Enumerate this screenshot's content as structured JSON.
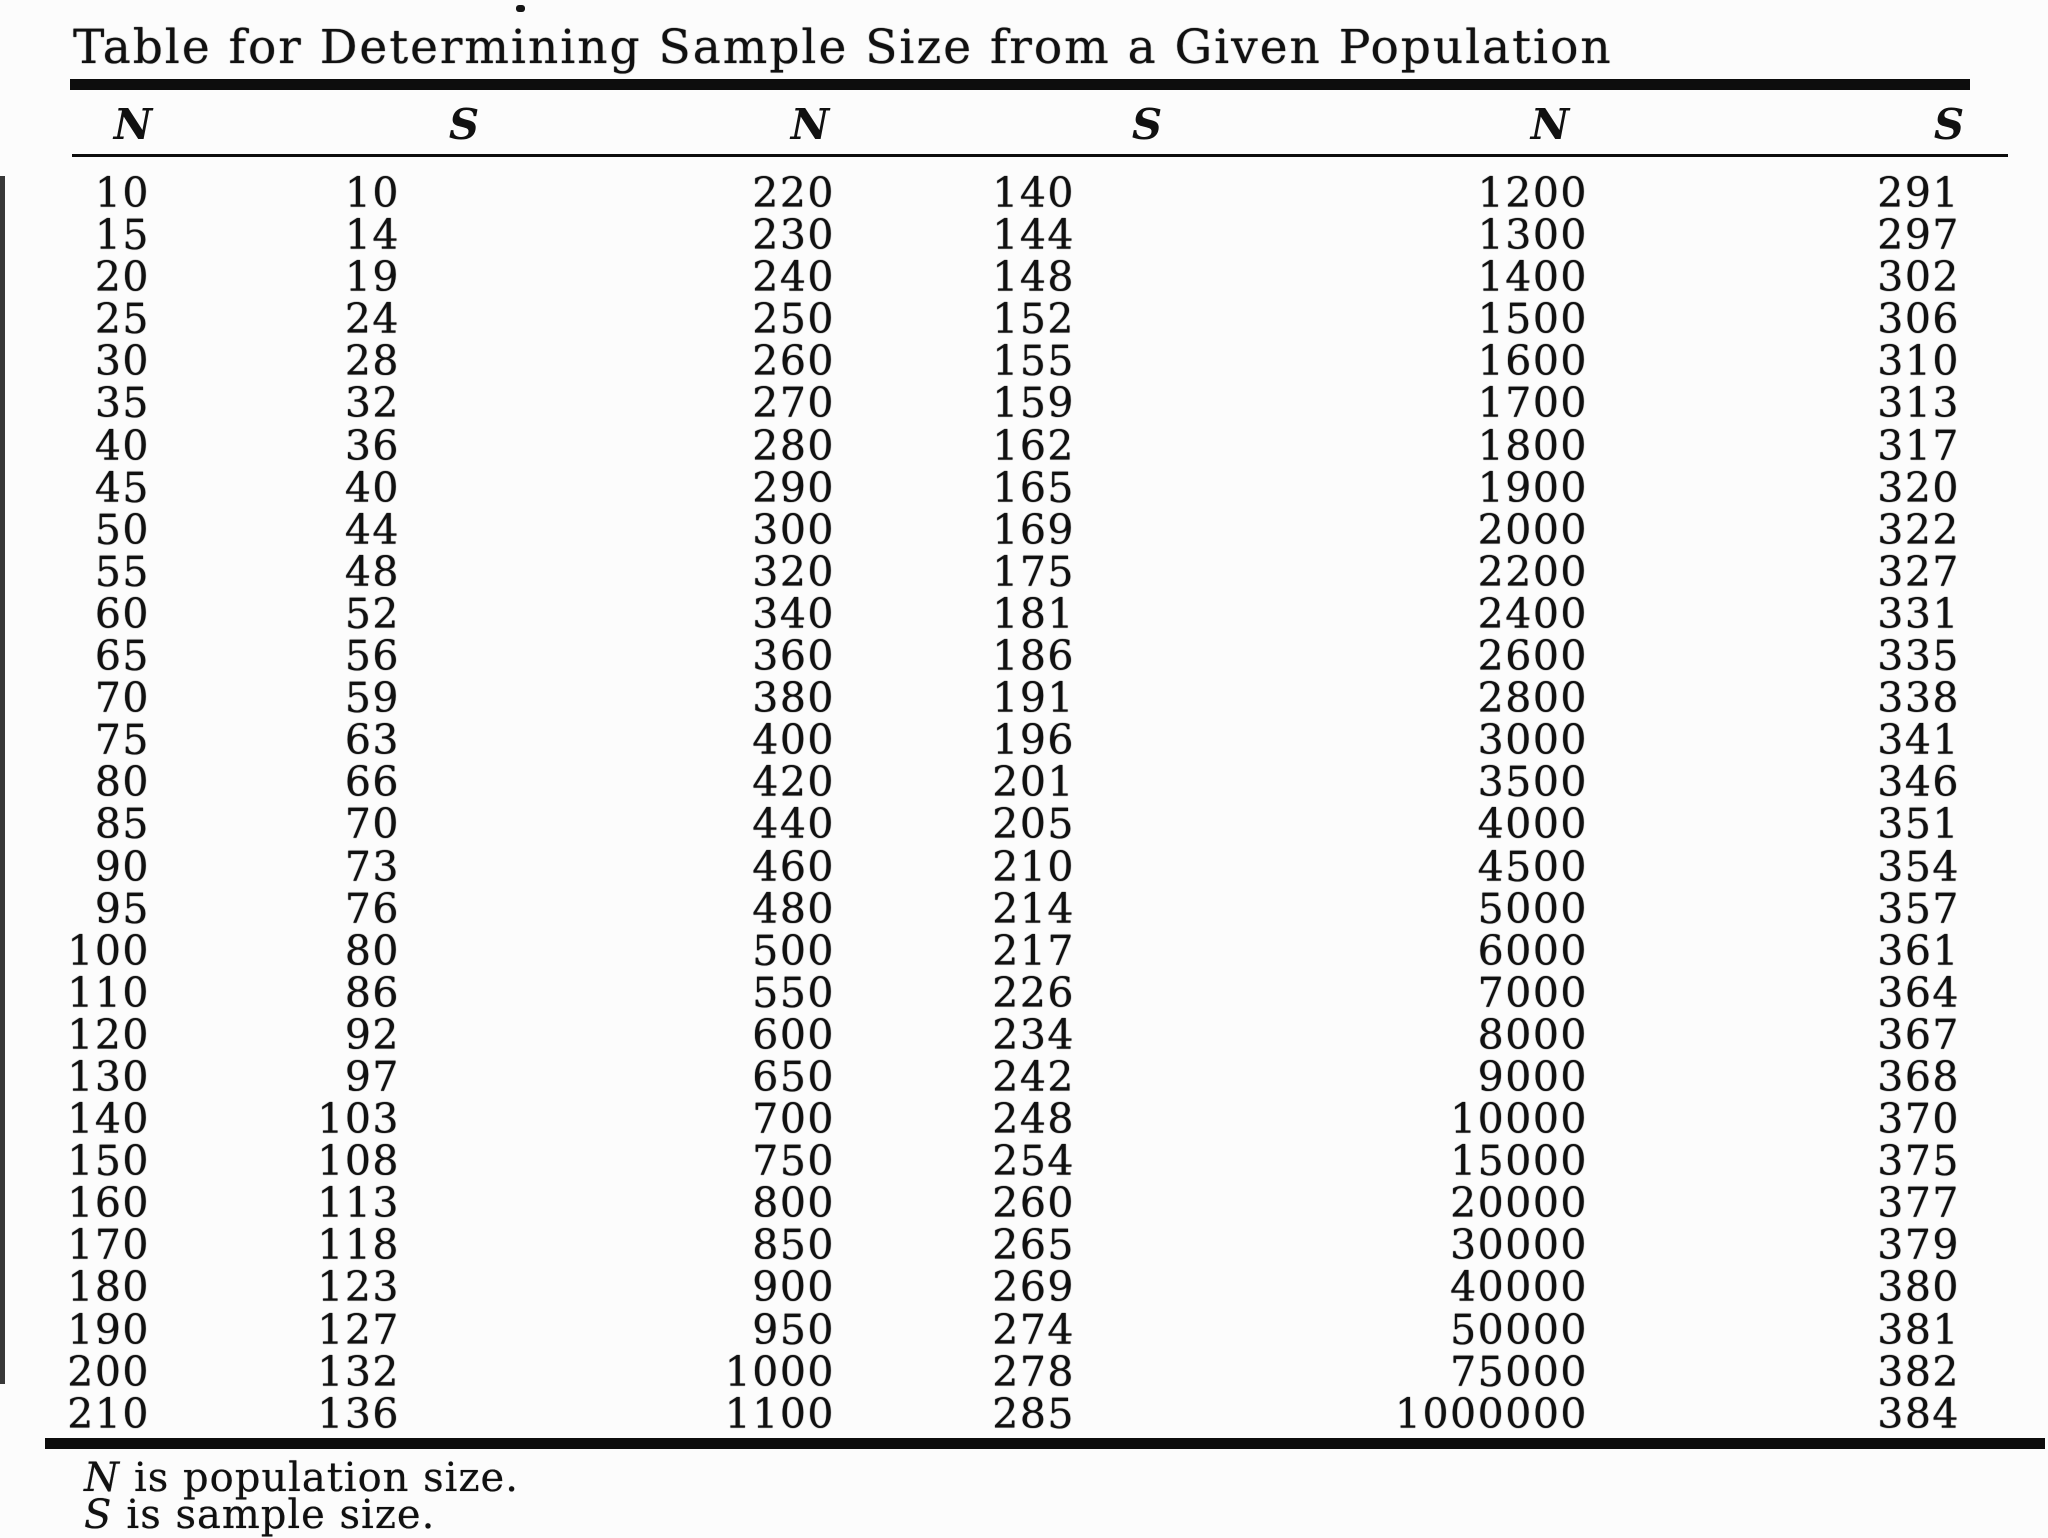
{
  "title": "Table for Determining Sample Size from a Given Population",
  "table": {
    "column_headers": [
      "N",
      "S",
      "N",
      "S",
      "N",
      "S"
    ],
    "columns": [
      {
        "header": "N",
        "values": [
          10,
          15,
          20,
          25,
          30,
          35,
          40,
          45,
          50,
          55,
          60,
          65,
          70,
          75,
          80,
          85,
          90,
          95,
          100,
          110,
          120,
          130,
          140,
          150,
          160,
          170,
          180,
          190,
          200,
          210
        ]
      },
      {
        "header": "S",
        "values": [
          10,
          14,
          19,
          24,
          28,
          32,
          36,
          40,
          44,
          48,
          52,
          56,
          59,
          63,
          66,
          70,
          73,
          76,
          80,
          86,
          92,
          97,
          103,
          108,
          113,
          118,
          123,
          127,
          132,
          136
        ]
      },
      {
        "header": "N",
        "values": [
          220,
          230,
          240,
          250,
          260,
          270,
          280,
          290,
          300,
          320,
          340,
          360,
          380,
          400,
          420,
          440,
          460,
          480,
          500,
          550,
          600,
          650,
          700,
          750,
          800,
          850,
          900,
          950,
          1000,
          1100
        ]
      },
      {
        "header": "S",
        "values": [
          140,
          144,
          148,
          152,
          155,
          159,
          162,
          165,
          169,
          175,
          181,
          186,
          191,
          196,
          201,
          205,
          210,
          214,
          217,
          226,
          234,
          242,
          248,
          254,
          260,
          265,
          269,
          274,
          278,
          285
        ]
      },
      {
        "header": "N",
        "values": [
          1200,
          1300,
          1400,
          1500,
          1600,
          1700,
          1800,
          1900,
          2000,
          2200,
          2400,
          2600,
          2800,
          3000,
          3500,
          4000,
          4500,
          5000,
          6000,
          7000,
          8000,
          9000,
          10000,
          15000,
          20000,
          30000,
          40000,
          50000,
          75000,
          1000000
        ]
      },
      {
        "header": "S",
        "values": [
          291,
          297,
          302,
          306,
          310,
          313,
          317,
          320,
          322,
          327,
          331,
          335,
          338,
          341,
          346,
          351,
          354,
          357,
          361,
          364,
          367,
          368,
          370,
          375,
          377,
          379,
          380,
          381,
          382,
          384
        ]
      }
    ]
  },
  "footnotes": [
    {
      "symbol": "N",
      "text": "is population size."
    },
    {
      "symbol": "S",
      "text": "is sample size."
    }
  ],
  "colors": {
    "ink": "#111111",
    "paper": "#fcfcfc"
  }
}
